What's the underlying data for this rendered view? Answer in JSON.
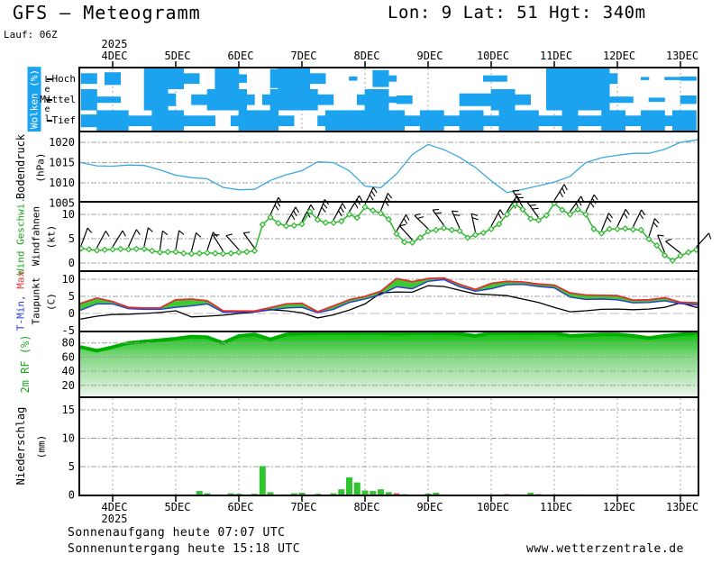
{
  "header": {
    "title": "GFS — Meteogramm",
    "location": "Lon: 9 Lat: 51 Hgt: 340m",
    "run": "Lauf: 06Z"
  },
  "footer": {
    "sunrise": "Sonnenaufgang heute 07:07 UTC",
    "sunset": "Sonnenuntergang heute 15:18 UTC",
    "website": "www.wetterzentrale.de"
  },
  "chart_data": {
    "type": "meteogram",
    "x_axis": {
      "year": "2025",
      "tick_labels": [
        "4DEC",
        "5DEC",
        "6DEC",
        "7DEC",
        "8DEC",
        "9DEC",
        "10DEC",
        "11DEC",
        "12DEC",
        "13DEC"
      ],
      "tick_days": [
        4,
        5,
        6,
        7,
        8,
        9,
        10,
        11,
        12,
        13
      ],
      "start_day": 3.5,
      "end_day": 13.3
    },
    "panels": {
      "clouds": {
        "label": "Wolken (%)",
        "axis_label": "Level",
        "level_labels": [
          "Hoch",
          "Mittel",
          "Tief"
        ],
        "color": "#1CA3F0",
        "step_days": 0.125,
        "hoch": [
          50,
          50,
          0,
          60,
          60,
          0,
          0,
          0,
          100,
          100,
          100,
          100,
          100,
          50,
          50,
          0,
          0,
          100,
          100,
          100,
          40,
          0,
          0,
          0,
          90,
          100,
          100,
          100,
          100,
          50,
          50,
          0,
          0,
          0,
          20,
          0,
          0,
          80,
          80,
          30,
          0,
          0,
          0,
          0,
          0,
          0,
          0,
          0,
          0,
          0,
          0,
          30,
          30,
          30,
          0,
          0,
          0,
          0,
          0,
          100,
          100,
          100,
          100,
          100,
          100,
          100,
          100,
          50,
          0,
          0,
          0,
          15,
          0,
          0,
          15,
          15,
          20,
          20
        ],
        "mittel": [
          100,
          100,
          30,
          30,
          30,
          0,
          0,
          0,
          100,
          100,
          100,
          60,
          0,
          0,
          50,
          50,
          100,
          100,
          100,
          100,
          100,
          50,
          0,
          50,
          100,
          100,
          100,
          100,
          100,
          100,
          50,
          50,
          0,
          0,
          0,
          50,
          100,
          100,
          100,
          30,
          40,
          40,
          0,
          0,
          0,
          0,
          0,
          0,
          60,
          60,
          60,
          60,
          100,
          100,
          100,
          50,
          50,
          0,
          0,
          100,
          100,
          100,
          100,
          100,
          100,
          100,
          100,
          30,
          30,
          30,
          0,
          0,
          20,
          20,
          0,
          0,
          40,
          40
        ],
        "tief": [
          60,
          60,
          100,
          100,
          100,
          100,
          50,
          50,
          50,
          100,
          100,
          100,
          100,
          50,
          50,
          50,
          50,
          0,
          0,
          50,
          100,
          100,
          100,
          100,
          100,
          50,
          50,
          0,
          0,
          0,
          50,
          100,
          100,
          100,
          100,
          100,
          100,
          100,
          100,
          100,
          100,
          50,
          50,
          100,
          100,
          100,
          50,
          50,
          100,
          100,
          100,
          50,
          50,
          100,
          100,
          100,
          100,
          100,
          50,
          50,
          50,
          100,
          100,
          50,
          50,
          50,
          100,
          100,
          100,
          50,
          50,
          100,
          100,
          100,
          50,
          100,
          100,
          100
        ]
      },
      "pressure": {
        "label": "Bodendruck",
        "unit": "(hPa)",
        "color": "#3AA7E0",
        "ticks": [
          "1005",
          "1010",
          "1015",
          "1020"
        ],
        "tick_values": [
          1005,
          1010,
          1015,
          1020
        ],
        "step_days": 0.25,
        "values": [
          1015.0,
          1014.2,
          1014.1,
          1014.4,
          1014.3,
          1013.2,
          1011.9,
          1011.3,
          1011.0,
          1008.9,
          1008.3,
          1008.4,
          1010.6,
          1012.0,
          1013.0,
          1015.2,
          1015.0,
          1013.0,
          1009.2,
          1008.8,
          1012.2,
          1017.0,
          1019.5,
          1018.2,
          1016.3,
          1013.8,
          1010.5,
          1007.6,
          1008.4,
          1009.3,
          1010.2,
          1011.6,
          1015.0,
          1016.2,
          1016.8,
          1017.3,
          1017.3,
          1018.3,
          1020.0,
          1020.6
        ]
      },
      "wind": {
        "label": "Wind Geschwi.",
        "label2": "Windfahnen",
        "unit": "(kt)",
        "color": "#2DB82D",
        "ticks": [
          "0",
          "5",
          "10"
        ],
        "tick_values": [
          0,
          5,
          10
        ],
        "step_days": 0.125,
        "values": [
          3.0,
          2.8,
          2.6,
          2.7,
          2.8,
          2.9,
          2.8,
          2.9,
          2.9,
          2.5,
          2.2,
          2.3,
          2.3,
          2.0,
          1.9,
          2.0,
          2.1,
          2.0,
          1.9,
          2.0,
          2.2,
          2.3,
          2.5,
          7.9,
          9.4,
          8.2,
          7.6,
          7.7,
          8.0,
          10.6,
          8.9,
          8.3,
          8.3,
          8.6,
          10.0,
          9.3,
          11.5,
          10.8,
          10.2,
          9.0,
          6.0,
          4.3,
          4.2,
          5.2,
          6.5,
          6.8,
          7.2,
          6.8,
          6.6,
          5.2,
          5.8,
          6.2,
          7.0,
          8.0,
          10.0,
          12.1,
          11.0,
          9.1,
          8.8,
          9.8,
          12.3,
          10.9,
          10.0,
          11.0,
          10.0,
          7.0,
          6.1,
          7.0,
          7.0,
          7.1,
          6.9,
          6.8,
          4.9,
          3.6,
          1.6,
          0.5,
          1.5,
          2.2,
          2.7
        ],
        "barb_step_days": 0.25,
        "barb_angles": [
          20,
          28,
          32,
          25,
          12,
          8,
          10,
          14,
          18,
          -32,
          -42,
          -36,
          25,
          30,
          28,
          22,
          28,
          32,
          26,
          22,
          30,
          -42,
          -46,
          -36,
          -24,
          -12,
          28,
          32,
          -32,
          -36,
          32,
          36,
          26,
          22,
          26,
          26,
          18,
          -22,
          -52,
          42
        ]
      },
      "temperature": {
        "label_min": "T-Min, ",
        "label_max": "Max",
        "label_dew": "Taupunkt",
        "unit": "(C)",
        "color_max": "#E03030",
        "color_min": "#2A3BD6",
        "color_dew": "#000000",
        "fill": "#3FC832",
        "ticks": [
          "-5",
          "0",
          "5",
          "10"
        ],
        "tick_values": [
          -5,
          0,
          5,
          10
        ],
        "step_days": 0.25,
        "tmax": [
          3.0,
          4.5,
          3.5,
          1.8,
          1.6,
          1.6,
          4.0,
          4.2,
          3.7,
          0.8,
          0.7,
          0.7,
          1.7,
          2.8,
          3.0,
          0.5,
          2.2,
          4.0,
          5.0,
          6.5,
          10.2,
          9.3,
          10.2,
          10.4,
          8.5,
          7.0,
          8.8,
          9.4,
          9.2,
          8.6,
          8.3,
          6.0,
          5.4,
          5.3,
          5.2,
          3.9,
          4.0,
          4.6,
          3.3,
          3.1
        ],
        "tmin": [
          1.0,
          2.8,
          2.8,
          1.4,
          1.2,
          1.2,
          1.8,
          2.2,
          2.8,
          0.4,
          0.4,
          0.5,
          1.0,
          1.6,
          1.8,
          0.2,
          1.2,
          3.2,
          4.2,
          5.5,
          7.8,
          7.2,
          9.4,
          9.9,
          7.8,
          6.5,
          7.2,
          8.4,
          8.5,
          7.9,
          7.5,
          4.8,
          4.1,
          4.2,
          4.0,
          3.1,
          3.2,
          3.7,
          2.9,
          2.5
        ],
        "dew": [
          -1.6,
          -0.8,
          -0.3,
          -0.2,
          0.0,
          0.3,
          0.8,
          -1.0,
          -0.8,
          -0.5,
          0.0,
          0.4,
          1.1,
          0.8,
          0.2,
          -1.3,
          -0.4,
          1.0,
          2.8,
          6.0,
          6.3,
          6.2,
          8.1,
          7.9,
          6.8,
          5.7,
          5.5,
          5.2,
          4.2,
          3.2,
          1.8,
          0.5,
          0.8,
          1.2,
          1.3,
          1.1,
          1.3,
          1.8,
          3.1,
          1.8
        ]
      },
      "humidity": {
        "label": "2m RF (%)",
        "color": "#00AE00",
        "ticks": [
          "20",
          "40",
          "60",
          "80"
        ],
        "tick_values": [
          20,
          40,
          60,
          80
        ],
        "step_days": 0.25,
        "values": [
          74,
          69,
          74,
          80,
          82,
          84,
          86,
          89,
          88,
          80,
          90,
          92,
          85,
          92,
          94,
          95,
          96,
          97,
          97,
          96,
          93,
          95,
          96,
          95,
          93,
          90,
          94,
          95,
          96,
          95,
          94,
          90,
          91,
          92,
          92,
          90,
          87,
          90,
          92,
          94
        ]
      },
      "precip": {
        "label": "Niederschlag",
        "unit": "(mm)",
        "color": "#2FC52F",
        "color_alt": "#E05050",
        "ticks": [
          "0",
          "5",
          "10",
          "15"
        ],
        "tick_values": [
          0,
          5,
          10,
          15
        ],
        "bars": [
          {
            "day": 5.25,
            "mm": 0.1,
            "color": "red"
          },
          {
            "day": 5.375,
            "mm": 0.7,
            "color": "green"
          },
          {
            "day": 5.5,
            "mm": 0.3,
            "color": "green"
          },
          {
            "day": 5.875,
            "mm": 0.3,
            "color": "green"
          },
          {
            "day": 6.0,
            "mm": 0.2,
            "color": "green"
          },
          {
            "day": 6.25,
            "mm": 0.2,
            "color": "green"
          },
          {
            "day": 6.375,
            "mm": 5.1,
            "color": "green"
          },
          {
            "day": 6.5,
            "mm": 0.5,
            "color": "green"
          },
          {
            "day": 6.75,
            "mm": 0.1,
            "color": "red"
          },
          {
            "day": 6.875,
            "mm": 0.3,
            "color": "green"
          },
          {
            "day": 7.0,
            "mm": 0.4,
            "color": "green"
          },
          {
            "day": 7.25,
            "mm": 0.2,
            "color": "green"
          },
          {
            "day": 7.5,
            "mm": 0.3,
            "color": "green"
          },
          {
            "day": 7.625,
            "mm": 1.0,
            "color": "green"
          },
          {
            "day": 7.75,
            "mm": 3.1,
            "color": "green"
          },
          {
            "day": 7.875,
            "mm": 2.2,
            "color": "green"
          },
          {
            "day": 8.0,
            "mm": 0.8,
            "color": "green"
          },
          {
            "day": 8.125,
            "mm": 0.7,
            "color": "green"
          },
          {
            "day": 8.25,
            "mm": 1.0,
            "color": "green"
          },
          {
            "day": 8.375,
            "mm": 0.5,
            "color": "green"
          },
          {
            "day": 8.5,
            "mm": 0.3,
            "color": "red"
          },
          {
            "day": 8.625,
            "mm": 0.15,
            "color": "green"
          },
          {
            "day": 9.0,
            "mm": 0.25,
            "color": "green"
          },
          {
            "day": 9.125,
            "mm": 0.4,
            "color": "green"
          },
          {
            "day": 10.25,
            "mm": 0.15,
            "color": "red"
          },
          {
            "day": 10.375,
            "mm": 0.1,
            "color": "red"
          },
          {
            "day": 10.625,
            "mm": 0.4,
            "color": "green"
          },
          {
            "day": 10.75,
            "mm": 0.15,
            "color": "red"
          },
          {
            "day": 11.0,
            "mm": 0.1,
            "color": "red"
          },
          {
            "day": 11.125,
            "mm": 0.1,
            "color": "red"
          },
          {
            "day": 11.375,
            "mm": 0.1,
            "color": "red"
          }
        ]
      }
    }
  }
}
